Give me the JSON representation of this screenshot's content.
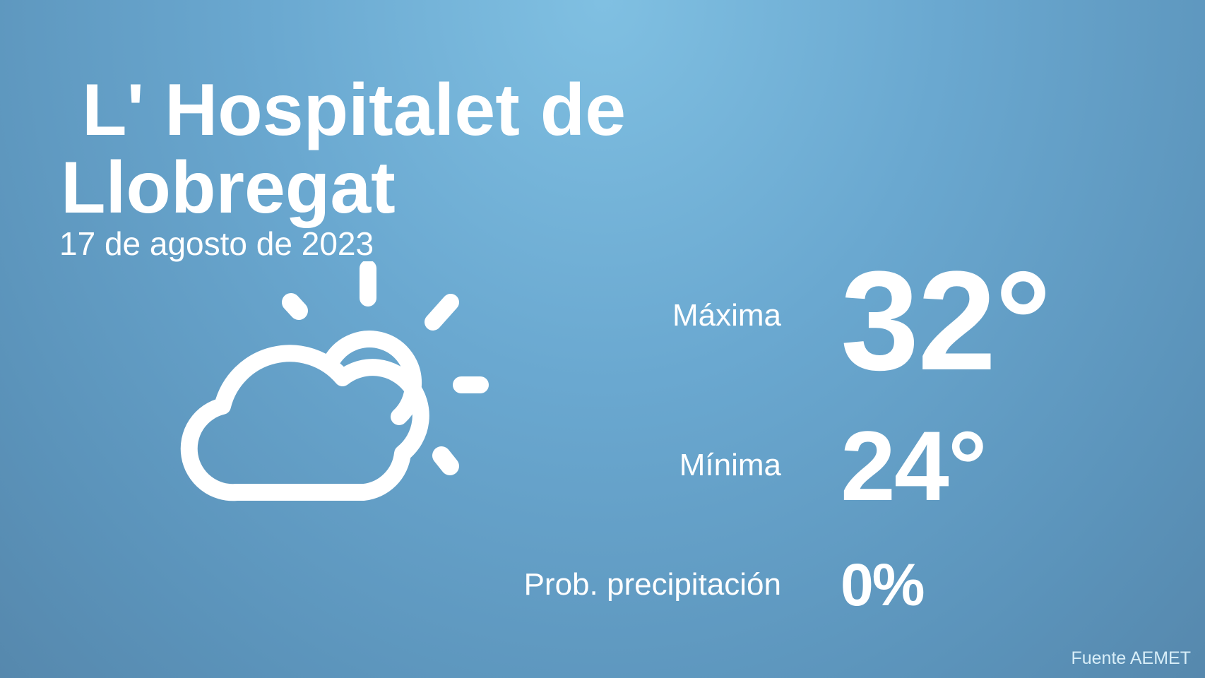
{
  "location": {
    "line1": "L' Hospitalet de",
    "line2": "Llobregat"
  },
  "date": "17 de agosto de 2023",
  "weather_icon": "partly-cloudy-sun-icon",
  "forecast": {
    "max_label": "Máxima",
    "max_value": "32°",
    "min_label": "Mínima",
    "min_value": "24°",
    "precip_label": "Prob. precipitación",
    "precip_value": "0%"
  },
  "source": "Fuente AEMET"
}
